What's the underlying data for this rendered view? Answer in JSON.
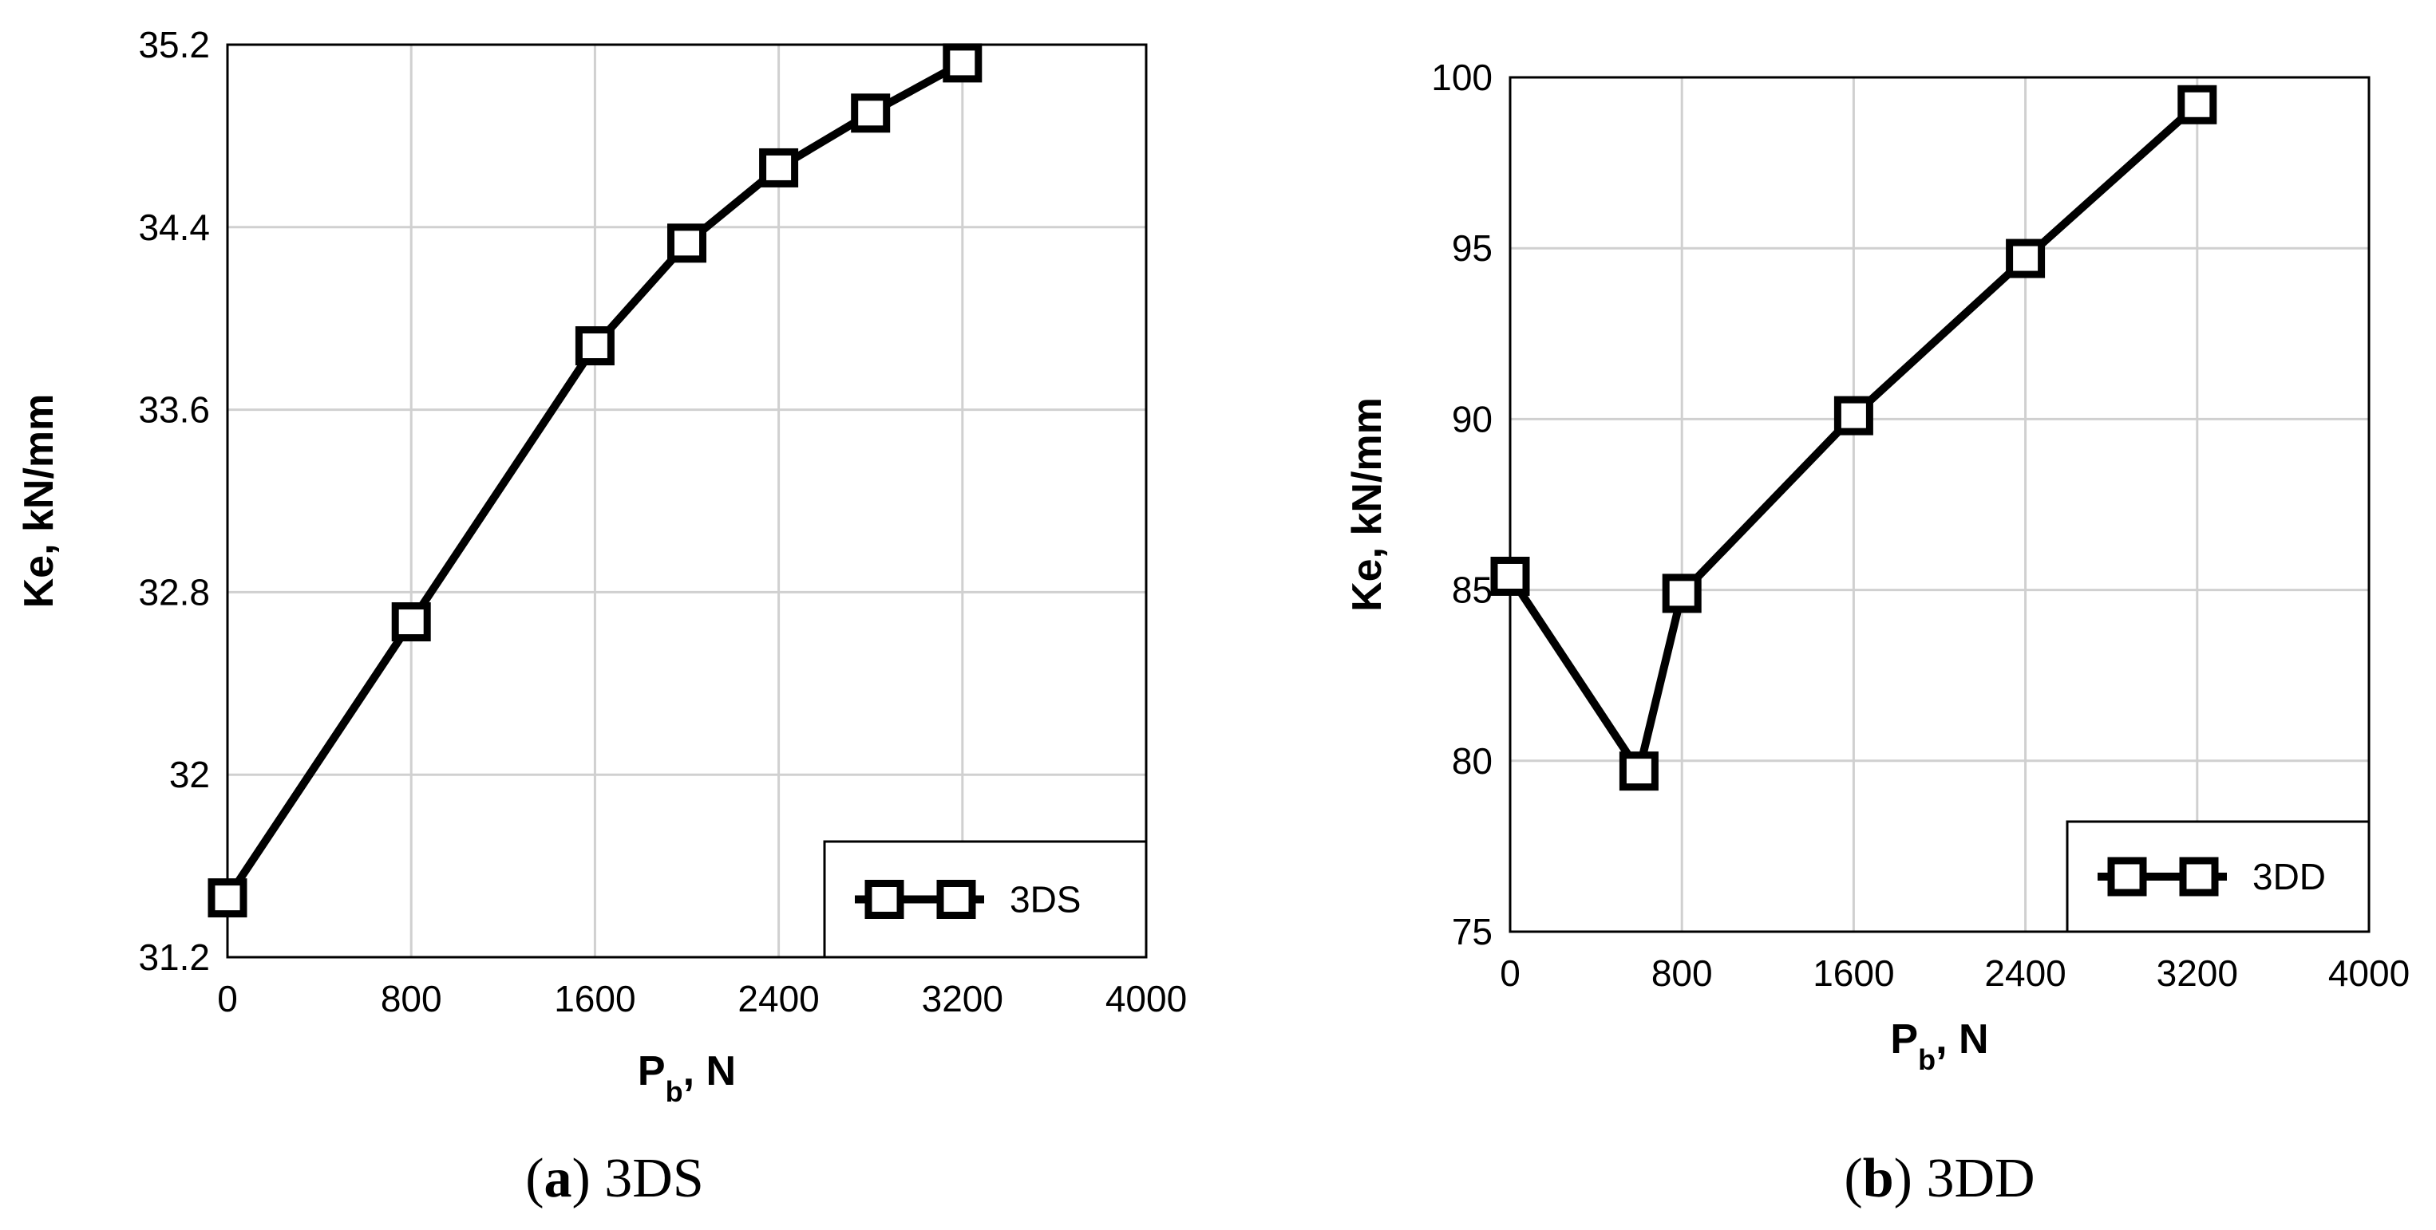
{
  "chart_data": [
    {
      "type": "line",
      "panel": "a",
      "caption": {
        "letter": "a",
        "text": "3DS"
      },
      "xlabel": {
        "main": "P",
        "sub": "b",
        "suffix": ", N"
      },
      "ylabel": "Ke, kN/mm",
      "xlim": [
        0,
        4000
      ],
      "ylim": [
        31.2,
        35.2
      ],
      "xticks": [
        "0",
        "800",
        "1600",
        "2400",
        "3200",
        "4000"
      ],
      "yticks": [
        "31.2",
        "32",
        "32.8",
        "33.6",
        "34.4",
        "35.2"
      ],
      "legend": {
        "position": "bottom-right"
      },
      "series": [
        {
          "name": "3DS",
          "x": [
            0,
            800,
            1600,
            2000,
            2400,
            2800,
            3200
          ],
          "y": [
            31.46,
            32.67,
            33.88,
            34.33,
            34.66,
            34.9,
            35.12
          ]
        }
      ]
    },
    {
      "type": "line",
      "panel": "b",
      "caption": {
        "letter": "b",
        "text": "3DD"
      },
      "xlabel": {
        "main": "P",
        "sub": "b",
        "suffix": ", N"
      },
      "ylabel": "Ke, kN/mm",
      "xlim": [
        0,
        4000
      ],
      "ylim": [
        75,
        100
      ],
      "xticks": [
        "0",
        "800",
        "1600",
        "2400",
        "3200",
        "4000"
      ],
      "yticks": [
        "75",
        "80",
        "85",
        "90",
        "95",
        "100"
      ],
      "legend": {
        "position": "bottom-right"
      },
      "series": [
        {
          "name": "3DD",
          "x": [
            0,
            600,
            800,
            1600,
            2400,
            3200
          ],
          "y": [
            85.4,
            79.7,
            84.9,
            90.1,
            94.7,
            99.2
          ]
        }
      ]
    }
  ]
}
